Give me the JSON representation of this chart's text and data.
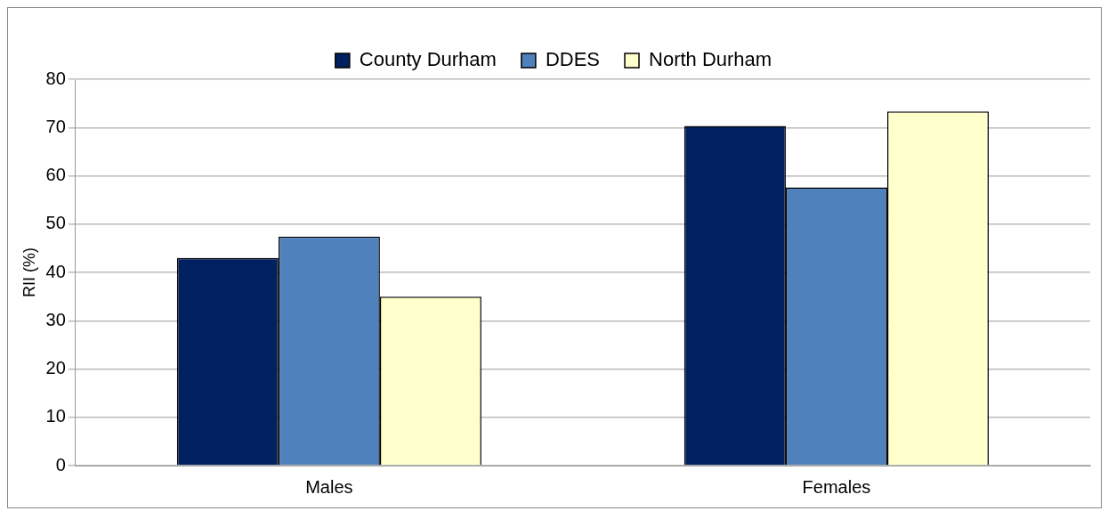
{
  "chart_data": {
    "type": "bar",
    "ylabel": "RII (%)",
    "categories": [
      "Males",
      "Females"
    ],
    "series": [
      {
        "name": "County Durham",
        "color": "#002060",
        "values": [
          43.0,
          70.3
        ]
      },
      {
        "name": "DDES",
        "color": "#4f81bd",
        "values": [
          47.4,
          57.6
        ]
      },
      {
        "name": "North Durham",
        "color": "#ffffcc",
        "values": [
          35.0,
          73.3
        ]
      }
    ],
    "ylim": [
      0,
      80
    ],
    "yticks": [
      0,
      10,
      20,
      30,
      40,
      50,
      60,
      70,
      80
    ],
    "grid": "y",
    "legend": "top"
  }
}
